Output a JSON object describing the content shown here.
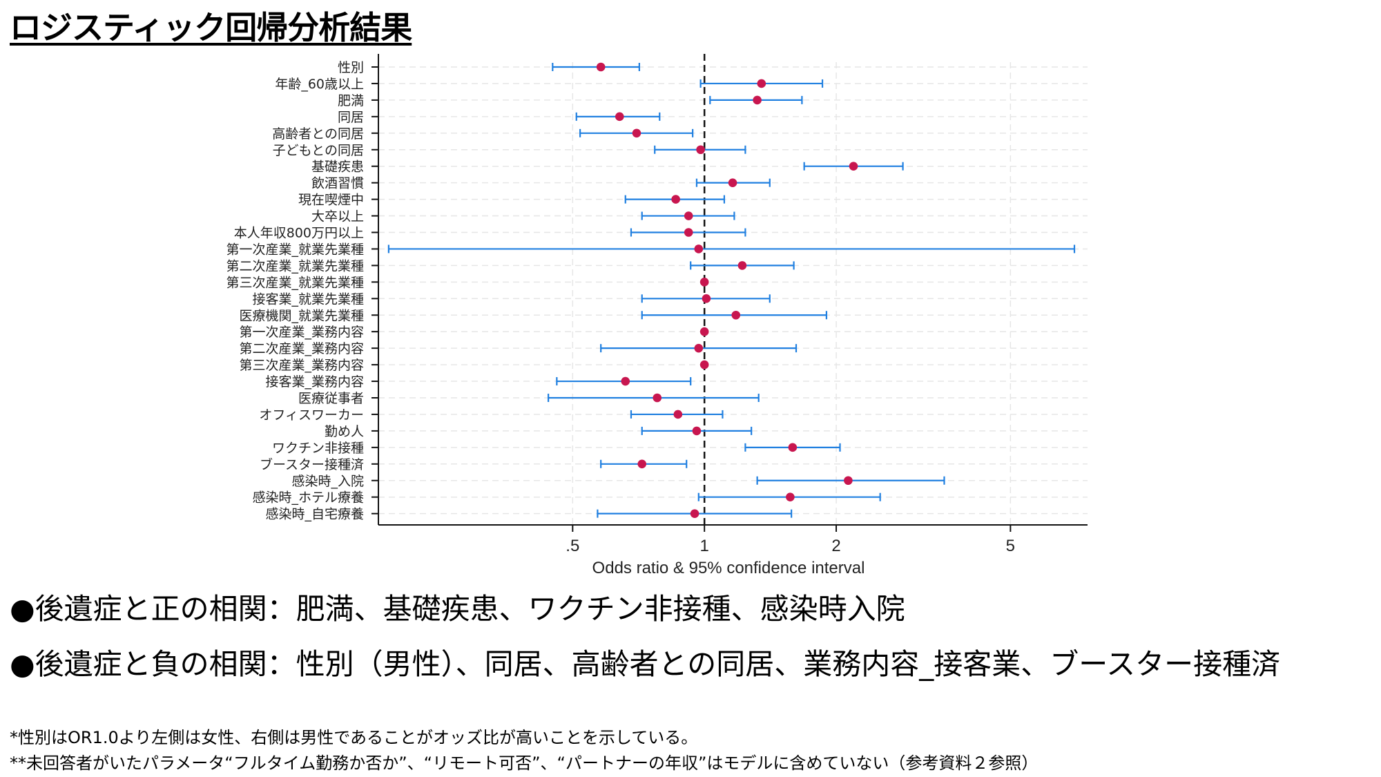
{
  "title": "ロジスティック回帰分析結果",
  "chart_data": {
    "type": "scatter",
    "subtype": "forest-plot",
    "xlabel": "Odds ratio & 95% confidence interval",
    "x_scale": "log",
    "xlim": [
      0.18,
      7.5
    ],
    "x_ticks": [
      0.5,
      1,
      2,
      5
    ],
    "x_tick_labels": [
      ".5",
      "1",
      "2",
      "5"
    ],
    "reference_line": 1,
    "grid": true,
    "point_color": "#c8164f",
    "ci_color": "#1f7fe0",
    "rows": [
      {
        "label": "性別",
        "or": 0.58,
        "lo": 0.45,
        "hi": 0.71
      },
      {
        "label": "年齢_60歳以上",
        "or": 1.35,
        "lo": 0.98,
        "hi": 1.86
      },
      {
        "label": "肥満",
        "or": 1.32,
        "lo": 1.03,
        "hi": 1.67
      },
      {
        "label": "同居",
        "or": 0.64,
        "lo": 0.51,
        "hi": 0.79
      },
      {
        "label": "高齢者との同居",
        "or": 0.7,
        "lo": 0.52,
        "hi": 0.94
      },
      {
        "label": "子どもとの同居",
        "or": 0.98,
        "lo": 0.77,
        "hi": 1.24
      },
      {
        "label": "基礎疾患",
        "or": 2.19,
        "lo": 1.69,
        "hi": 2.84
      },
      {
        "label": "飲酒習慣",
        "or": 1.16,
        "lo": 0.96,
        "hi": 1.41
      },
      {
        "label": "現在喫煙中",
        "or": 0.86,
        "lo": 0.66,
        "hi": 1.11
      },
      {
        "label": "大卒以上",
        "or": 0.92,
        "lo": 0.72,
        "hi": 1.17
      },
      {
        "label": "本人年収800万円以上",
        "or": 0.92,
        "lo": 0.68,
        "hi": 1.24
      },
      {
        "label": "第一次産業_就業先業種",
        "or": 0.97,
        "lo": 0.19,
        "hi": 7.0
      },
      {
        "label": "第二次産業_就業先業種",
        "or": 1.22,
        "lo": 0.93,
        "hi": 1.6
      },
      {
        "label": "第三次産業_就業先業種",
        "or": 1.0,
        "lo": 1.0,
        "hi": 1.0
      },
      {
        "label": "接客業_就業先業種",
        "or": 1.01,
        "lo": 0.72,
        "hi": 1.41
      },
      {
        "label": "医療機関_就業先業種",
        "or": 1.18,
        "lo": 0.72,
        "hi": 1.9
      },
      {
        "label": "第一次産業_業務内容",
        "or": 1.0,
        "lo": 1.0,
        "hi": 1.0
      },
      {
        "label": "第二次産業_業務内容",
        "or": 0.97,
        "lo": 0.58,
        "hi": 1.62
      },
      {
        "label": "第三次産業_業務内容",
        "or": 1.0,
        "lo": 1.0,
        "hi": 1.0
      },
      {
        "label": "接客業_業務内容",
        "or": 0.66,
        "lo": 0.46,
        "hi": 0.93
      },
      {
        "label": "医療従事者",
        "or": 0.78,
        "lo": 0.44,
        "hi": 1.33
      },
      {
        "label": "オフィスワーカー",
        "or": 0.87,
        "lo": 0.68,
        "hi": 1.1
      },
      {
        "label": "勤め人",
        "or": 0.96,
        "lo": 0.72,
        "hi": 1.28
      },
      {
        "label": "ワクチン非接種",
        "or": 1.59,
        "lo": 1.24,
        "hi": 2.04
      },
      {
        "label": "ブースター接種済",
        "or": 0.72,
        "lo": 0.58,
        "hi": 0.91
      },
      {
        "label": "感染時_入院",
        "or": 2.13,
        "lo": 1.32,
        "hi": 3.53
      },
      {
        "label": "感染時_ホテル療養",
        "or": 1.57,
        "lo": 0.97,
        "hi": 2.52
      },
      {
        "label": "感染時_自宅療養",
        "or": 0.95,
        "lo": 0.57,
        "hi": 1.58
      }
    ]
  },
  "bullets": {
    "positive": "●後遺症と正の相関：肥満、基礎疾患、ワクチン非接種、感染時入院",
    "negative": "●後遺症と負の相関：性別（男性）、同居、高齢者との同居、業務内容_接客業、ブースター接種済"
  },
  "notes": {
    "note1": "*性別はOR1.0より左側は女性、右側は男性であることがオッズ比が高いことを示している。",
    "note2": "**未回答者がいたパラメータ“フルタイム勤務か否か”、“リモート可否”、“パートナーの年収”はモデルに含めていない（参考資料２参照）"
  }
}
